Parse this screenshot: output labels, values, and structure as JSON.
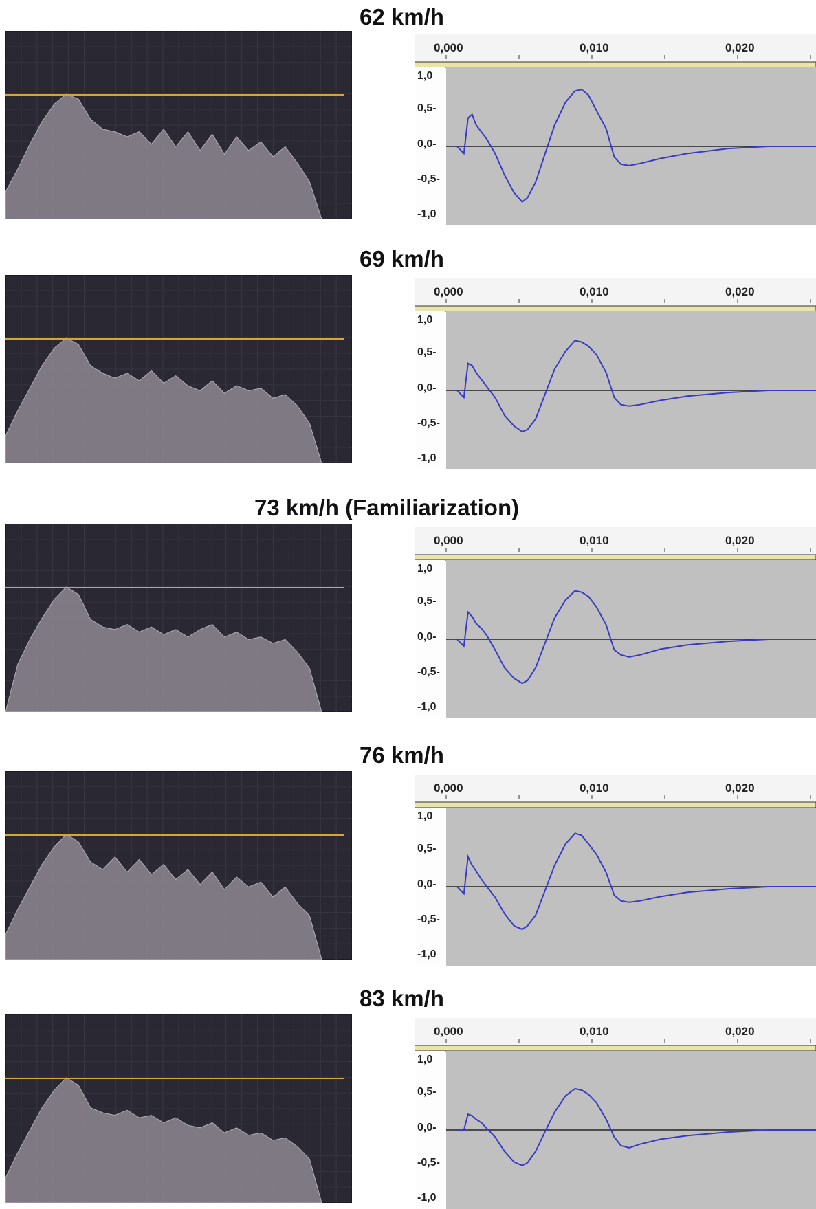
{
  "rows": [
    {
      "title": "62 km/h"
    },
    {
      "title": "69 km/h"
    },
    {
      "title": "73 km/h (Familiarization)"
    },
    {
      "title": "76 km/h"
    },
    {
      "title": "83 km/h"
    }
  ],
  "waveform_axis": {
    "x_ticks": [
      "0,000",
      "0,010",
      "0,020"
    ],
    "y_ticks": [
      "1,0",
      "0,5-",
      "0,0-",
      "-0,5-",
      "-1,0"
    ]
  },
  "colors": {
    "spectrum_bg": "#2a2832",
    "spectrum_fill": "#8e8793",
    "reference_line": "#d9a532",
    "waveform_line": "#3a3ac4",
    "waveform_bg": "#c0c0c0"
  },
  "chart_data": [
    {
      "type": "line",
      "panel": "waveform",
      "title": "62 km/h",
      "x": [
        0.0,
        0.0005,
        0.0008,
        0.0011,
        0.0014,
        0.0018,
        0.0022,
        0.0028,
        0.0035,
        0.0042,
        0.0048,
        0.0052,
        0.0058,
        0.0065,
        0.0072,
        0.008,
        0.0087,
        0.0092,
        0.0097,
        0.0103,
        0.011,
        0.0116,
        0.0121,
        0.0127,
        0.0135,
        0.015,
        0.017,
        0.02,
        0.023,
        0.025
      ],
      "y": [
        0.0,
        -0.1,
        0.4,
        0.45,
        0.3,
        0.2,
        0.1,
        -0.1,
        -0.4,
        -0.65,
        -0.78,
        -0.72,
        -0.5,
        -0.1,
        0.3,
        0.62,
        0.78,
        0.8,
        0.72,
        0.5,
        0.25,
        -0.15,
        -0.25,
        -0.27,
        -0.24,
        -0.17,
        -0.1,
        -0.03,
        0.0,
        0.0
      ],
      "ylim": [
        -1,
        1
      ]
    },
    {
      "type": "line",
      "panel": "waveform",
      "title": "69 km/h",
      "x": [
        0.0,
        0.0005,
        0.0008,
        0.0011,
        0.0014,
        0.0018,
        0.0022,
        0.0028,
        0.0035,
        0.0042,
        0.0048,
        0.0052,
        0.0058,
        0.0065,
        0.0072,
        0.008,
        0.0087,
        0.0092,
        0.0097,
        0.0103,
        0.011,
        0.0116,
        0.0121,
        0.0127,
        0.0135,
        0.015,
        0.017,
        0.02,
        0.023,
        0.025
      ],
      "y": [
        0.0,
        -0.1,
        0.38,
        0.35,
        0.25,
        0.15,
        0.05,
        -0.1,
        -0.35,
        -0.5,
        -0.58,
        -0.55,
        -0.4,
        -0.05,
        0.3,
        0.55,
        0.7,
        0.68,
        0.62,
        0.5,
        0.25,
        -0.1,
        -0.2,
        -0.22,
        -0.2,
        -0.14,
        -0.08,
        -0.03,
        0.0,
        0.0
      ],
      "ylim": [
        -1,
        1
      ]
    },
    {
      "type": "line",
      "panel": "waveform",
      "title": "73 km/h (Familiarization)",
      "x": [
        0.0,
        0.0005,
        0.0008,
        0.0011,
        0.0014,
        0.0018,
        0.0022,
        0.0028,
        0.0035,
        0.0042,
        0.0048,
        0.0052,
        0.0058,
        0.0065,
        0.0072,
        0.008,
        0.0087,
        0.0092,
        0.0097,
        0.0103,
        0.011,
        0.0116,
        0.0121,
        0.0127,
        0.0135,
        0.015,
        0.017,
        0.02,
        0.023,
        0.025
      ],
      "y": [
        0.0,
        -0.1,
        0.38,
        0.32,
        0.22,
        0.15,
        0.05,
        -0.15,
        -0.4,
        -0.55,
        -0.62,
        -0.58,
        -0.4,
        -0.05,
        0.3,
        0.55,
        0.68,
        0.66,
        0.6,
        0.45,
        0.2,
        -0.15,
        -0.22,
        -0.25,
        -0.22,
        -0.14,
        -0.08,
        -0.03,
        0.0,
        0.0
      ],
      "ylim": [
        -1,
        1
      ]
    },
    {
      "type": "line",
      "panel": "waveform",
      "title": "76 km/h",
      "x": [
        0.0,
        0.0005,
        0.0008,
        0.0011,
        0.0014,
        0.0018,
        0.0022,
        0.0028,
        0.0035,
        0.0042,
        0.0048,
        0.0052,
        0.0058,
        0.0065,
        0.0072,
        0.008,
        0.0087,
        0.0092,
        0.0097,
        0.0103,
        0.011,
        0.0116,
        0.0121,
        0.0127,
        0.0135,
        0.015,
        0.017,
        0.02,
        0.023,
        0.025
      ],
      "y": [
        0.0,
        -0.1,
        0.42,
        0.3,
        0.22,
        0.1,
        0.0,
        -0.15,
        -0.38,
        -0.55,
        -0.6,
        -0.55,
        -0.4,
        -0.05,
        0.3,
        0.6,
        0.75,
        0.72,
        0.6,
        0.45,
        0.2,
        -0.12,
        -0.2,
        -0.22,
        -0.2,
        -0.14,
        -0.08,
        -0.03,
        0.0,
        0.0
      ],
      "ylim": [
        -1,
        1
      ]
    },
    {
      "type": "line",
      "panel": "waveform",
      "title": "83 km/h",
      "x": [
        0.0,
        0.0005,
        0.0008,
        0.0011,
        0.0014,
        0.0018,
        0.0022,
        0.0028,
        0.0035,
        0.0042,
        0.0048,
        0.0052,
        0.0058,
        0.0065,
        0.0072,
        0.008,
        0.0087,
        0.0092,
        0.0097,
        0.0103,
        0.011,
        0.0116,
        0.0121,
        0.0127,
        0.0135,
        0.015,
        0.017,
        0.02,
        0.023,
        0.025
      ],
      "y": [
        0.0,
        0.0,
        0.22,
        0.2,
        0.15,
        0.1,
        0.02,
        -0.1,
        -0.3,
        -0.45,
        -0.5,
        -0.46,
        -0.3,
        -0.02,
        0.25,
        0.48,
        0.58,
        0.56,
        0.5,
        0.38,
        0.15,
        -0.1,
        -0.22,
        -0.25,
        -0.2,
        -0.13,
        -0.08,
        -0.03,
        0.0,
        0.0
      ],
      "ylim": [
        -1,
        1
      ]
    },
    {
      "type": "area",
      "panel": "spectrum",
      "title": "62 km/h",
      "values": [
        0.22,
        0.4,
        0.6,
        0.78,
        0.92,
        1.0,
        0.96,
        0.8,
        0.72,
        0.7,
        0.66,
        0.7,
        0.6,
        0.72,
        0.58,
        0.7,
        0.55,
        0.68,
        0.52,
        0.66,
        0.55,
        0.62,
        0.5,
        0.58,
        0.45,
        0.3,
        0.0
      ]
    },
    {
      "type": "area",
      "panel": "spectrum",
      "title": "69 km/h",
      "values": [
        0.22,
        0.42,
        0.6,
        0.78,
        0.92,
        1.0,
        0.95,
        0.78,
        0.72,
        0.68,
        0.72,
        0.66,
        0.74,
        0.64,
        0.7,
        0.62,
        0.58,
        0.66,
        0.56,
        0.62,
        0.58,
        0.6,
        0.52,
        0.55,
        0.46,
        0.32,
        0.0
      ]
    },
    {
      "type": "area",
      "panel": "spectrum",
      "title": "73 km/h (Familiarization)",
      "values": [
        0.0,
        0.38,
        0.58,
        0.75,
        0.9,
        1.0,
        0.94,
        0.74,
        0.68,
        0.66,
        0.7,
        0.64,
        0.68,
        0.62,
        0.66,
        0.6,
        0.66,
        0.7,
        0.6,
        0.64,
        0.58,
        0.6,
        0.55,
        0.58,
        0.48,
        0.35,
        0.0
      ]
    },
    {
      "type": "area",
      "panel": "spectrum",
      "title": "76 km/h",
      "values": [
        0.2,
        0.4,
        0.58,
        0.76,
        0.9,
        1.0,
        0.94,
        0.78,
        0.72,
        0.82,
        0.7,
        0.8,
        0.68,
        0.76,
        0.64,
        0.72,
        0.6,
        0.7,
        0.56,
        0.66,
        0.58,
        0.62,
        0.5,
        0.58,
        0.45,
        0.35,
        0.0
      ]
    },
    {
      "type": "area",
      "panel": "spectrum",
      "title": "83 km/h",
      "values": [
        0.2,
        0.4,
        0.58,
        0.76,
        0.9,
        1.0,
        0.94,
        0.76,
        0.72,
        0.7,
        0.74,
        0.68,
        0.7,
        0.64,
        0.68,
        0.62,
        0.6,
        0.64,
        0.56,
        0.6,
        0.54,
        0.56,
        0.5,
        0.52,
        0.45,
        0.35,
        0.0
      ]
    }
  ]
}
